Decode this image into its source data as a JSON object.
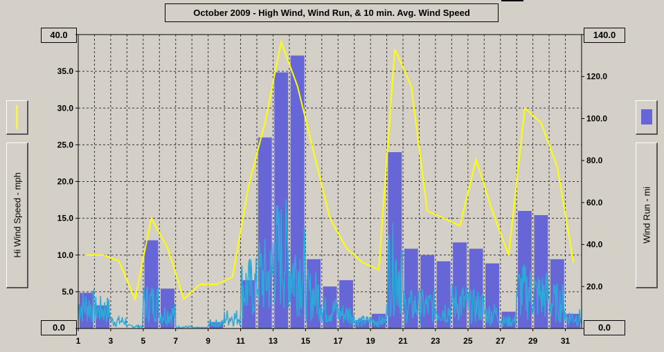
{
  "chart_data": {
    "type": "bar",
    "title": "October 2009 - High Wind, Wind Run, & 10 min. Avg. Wind Speed",
    "left_axis_label": "Hi Wind Speed - mph",
    "right_axis_label": "Wind Run - mi",
    "left_ylim": [
      0,
      40
    ],
    "right_ylim": [
      0,
      140
    ],
    "left_ticks": [
      "0.0",
      "5.0",
      "10.0",
      "15.0",
      "20.0",
      "25.0",
      "30.0",
      "35.0",
      "40.0"
    ],
    "right_ticks": [
      "0.0",
      "20.0",
      "40.0",
      "60.0",
      "80.0",
      "100.0",
      "120.0",
      "140.0"
    ],
    "x_ticks": [
      "1",
      "3",
      "5",
      "7",
      "9",
      "11",
      "13",
      "15",
      "17",
      "19",
      "21",
      "23",
      "25",
      "27",
      "29",
      "31"
    ],
    "xlim": [
      1,
      32
    ],
    "grid": true,
    "colors": {
      "high_wind": "#ffff00",
      "wind_run": "#6666d6",
      "avg_speed": "#2ea8d8",
      "plot_bg": "#d4d0c8"
    },
    "series": [
      {
        "name": "High Wind",
        "axis": "left",
        "x": [
          1.5,
          2.5,
          3.5,
          4.5,
          5.5,
          6.5,
          7.5,
          8.5,
          9.5,
          10.5,
          11.5,
          12.5,
          13.5,
          14.5,
          15.5,
          16.5,
          17.5,
          18.5,
          19.5,
          20.5,
          21.5,
          22.5,
          23.5,
          24.5,
          25.5,
          26.5,
          27.5,
          28.5,
          29.5,
          30.5,
          31.5
        ],
        "values": [
          10.0,
          10.0,
          9.2,
          4.0,
          15.0,
          11.0,
          4.0,
          6.0,
          6.0,
          7.0,
          19.5,
          28.0,
          39.0,
          33.0,
          24.0,
          15.0,
          11.0,
          9.0,
          8.0,
          38.0,
          33.0,
          16.0,
          15.0,
          14.0,
          23.0,
          16.0,
          10.0,
          30.0,
          28.0,
          22.0,
          9.0
        ]
      },
      {
        "name": "Wind Run",
        "axis": "right",
        "x": [
          1.5,
          2.5,
          3.5,
          4.5,
          5.5,
          6.5,
          7.5,
          8.5,
          9.5,
          10.5,
          11.5,
          12.5,
          13.5,
          14.5,
          15.5,
          16.5,
          17.5,
          18.5,
          19.5,
          20.5,
          21.5,
          22.5,
          23.5,
          24.5,
          25.5,
          26.5,
          27.5,
          28.5,
          29.5,
          30.5,
          31.5
        ],
        "values": [
          17,
          11,
          0,
          0,
          42,
          19,
          0,
          0,
          3,
          0,
          23,
          91,
          122,
          130,
          33,
          20,
          23,
          4,
          7,
          84,
          38,
          35,
          32,
          41,
          38,
          31,
          8,
          56,
          54,
          33,
          7
        ]
      },
      {
        "name": "10 min. Avg. Wind Speed",
        "axis": "left",
        "x": [
          1.5,
          2.5,
          3.5,
          4.5,
          5.5,
          6.5,
          7.5,
          8.5,
          9.5,
          10.5,
          11.5,
          12.5,
          13.5,
          14.5,
          15.5,
          16.5,
          17.5,
          18.5,
          19.5,
          20.5,
          21.5,
          22.5,
          23.5,
          24.5,
          25.5,
          26.5,
          27.5,
          28.5,
          29.5,
          30.5,
          31.5
        ],
        "values": [
          3.0,
          2.5,
          1.0,
          0.3,
          3.5,
          2.0,
          0.2,
          0.1,
          0.7,
          1.5,
          5.5,
          7.0,
          10.0,
          8.0,
          4.5,
          2.5,
          2.0,
          1.0,
          1.0,
          8.0,
          3.0,
          3.0,
          2.5,
          3.5,
          3.0,
          2.0,
          1.0,
          5.0,
          4.5,
          3.5,
          1.5
        ]
      }
    ]
  }
}
